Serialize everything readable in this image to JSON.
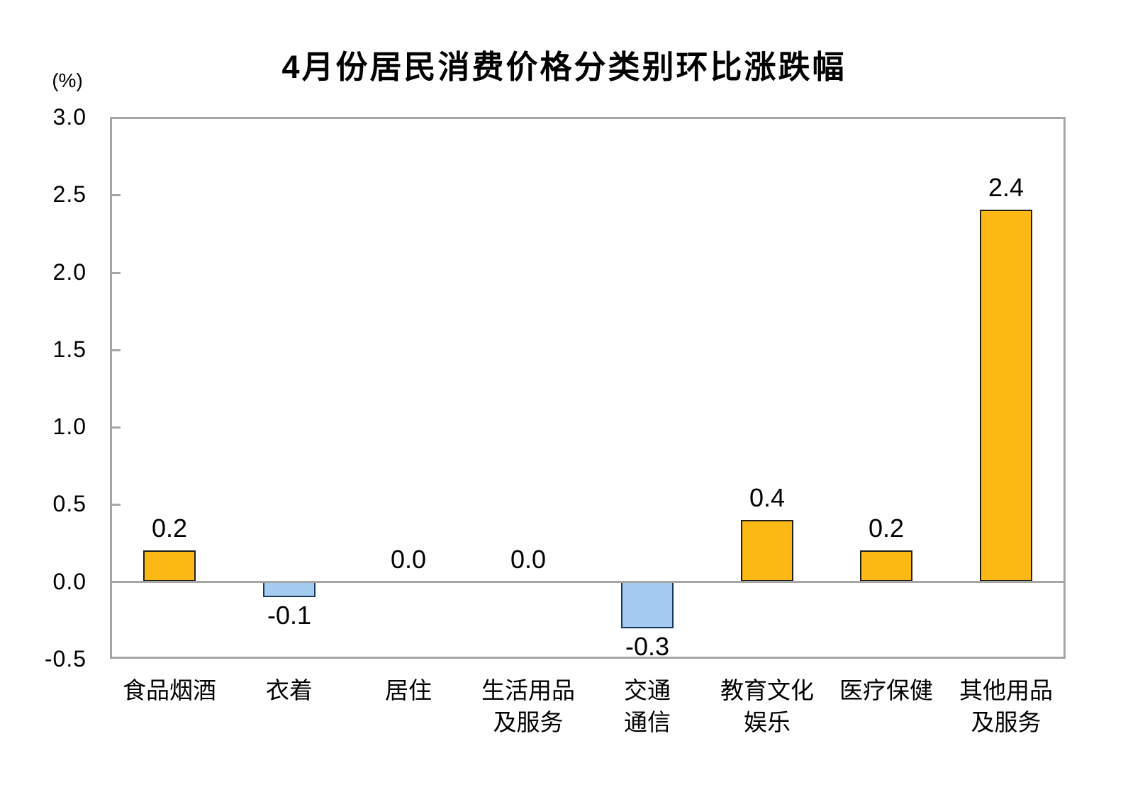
{
  "title": "4月份居民消费价格分类别环比涨跌幅",
  "y_axis": {
    "unit_label": "(%)",
    "tick_labels": [
      "3.0",
      "2.5",
      "2.0",
      "1.5",
      "1.0",
      "0.5",
      "0.0",
      "-0.5"
    ],
    "tick_values": [
      3.0,
      2.5,
      2.0,
      1.5,
      1.0,
      0.5,
      0.0,
      -0.5
    ],
    "inner_tick_values": [
      2.5,
      2.0,
      1.5,
      1.0,
      0.5
    ]
  },
  "chart_data": {
    "type": "bar",
    "title": "4月份居民消费价格分类别环比涨跌幅",
    "ylabel": "(%)",
    "ylim": [
      -0.5,
      3.0
    ],
    "ytick_interval": 0.5,
    "grid": false,
    "legend": "none",
    "categories": [
      "食品烟酒",
      "衣着",
      "居住",
      "生活用品及服务",
      "交通通信",
      "教育文化娱乐",
      "医疗保健",
      "其他用品及服务"
    ],
    "category_lines": [
      [
        "食品烟酒"
      ],
      [
        "衣着"
      ],
      [
        "居住"
      ],
      [
        "生活用品",
        "及服务"
      ],
      [
        "交通",
        "通信"
      ],
      [
        "教育文化",
        "娱乐"
      ],
      [
        "医疗保健"
      ],
      [
        "其他用品",
        "及服务"
      ]
    ],
    "values": [
      0.2,
      -0.1,
      0.0,
      0.0,
      -0.3,
      0.4,
      0.2,
      2.4
    ],
    "value_labels": [
      "0.2",
      "-0.1",
      "0.0",
      "0.0",
      "-0.3",
      "0.4",
      "0.2",
      "2.4"
    ]
  },
  "colors": {
    "positive_fill": "#FCB813",
    "positive_border": "#1F1F1F",
    "negative_fill": "#A6CBF0",
    "negative_border": "#17375E",
    "frame": "#A6A6A6",
    "zero_line": "#A6A6A6",
    "text": "#000000",
    "background": "#FFFFFF"
  }
}
